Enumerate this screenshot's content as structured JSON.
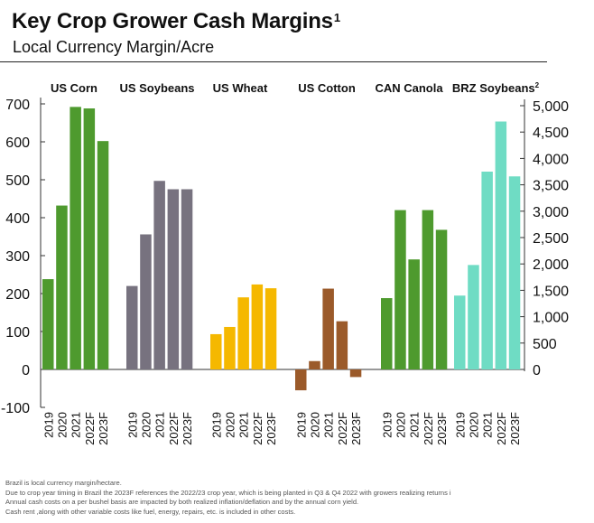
{
  "header": {
    "title": "Key Crop Grower Cash Margins",
    "title_footnote": "1",
    "subtitle": "Local Currency Margin/Acre"
  },
  "chart_data": {
    "type": "bar",
    "title": "Key Crop Grower Cash Margins",
    "subtitle": "Local Currency Margin/Acre",
    "categories": [
      "2019",
      "2020",
      "2021",
      "2022F",
      "2023F"
    ],
    "left_axis": {
      "ylim": [
        -100,
        700
      ],
      "ticks": [
        -100,
        0,
        100,
        200,
        300,
        400,
        500,
        600,
        700
      ]
    },
    "right_axis": {
      "ylim": [
        -500,
        5000
      ],
      "ticks": [
        0,
        500,
        1000,
        1500,
        2000,
        2500,
        3000,
        3500,
        4000,
        4500,
        5000
      ]
    },
    "grid": false,
    "groups": [
      {
        "name": "US Corn",
        "sup": "",
        "axis": "left",
        "color": "#4e9a2e",
        "values": [
          238,
          432,
          692,
          688,
          602
        ]
      },
      {
        "name": "US Soybeans",
        "sup": "",
        "axis": "left",
        "color": "#77727f",
        "values": [
          220,
          356,
          497,
          475,
          475
        ]
      },
      {
        "name": "US Wheat",
        "sup": "",
        "axis": "left",
        "color": "#f5b800",
        "values": [
          93,
          112,
          190,
          224,
          214
        ]
      },
      {
        "name": "US Cotton",
        "sup": "",
        "axis": "left",
        "color": "#9b5a2a",
        "values": [
          -55,
          22,
          213,
          127,
          -20
        ]
      },
      {
        "name": "CAN Canola",
        "sup": "",
        "axis": "left",
        "color": "#4e9a2e",
        "values": [
          188,
          420,
          290,
          420,
          368
        ]
      },
      {
        "name": "BRZ Soybeans",
        "sup": "2",
        "axis": "right",
        "color": "#6fdcc4",
        "values": [
          1400,
          1980,
          3750,
          4700,
          3660
        ]
      }
    ]
  },
  "footnotes": [
    "Brazil is local currency margin/hectare.",
    "Due to crop year timing in Brazil the 2023F references the 2022/23 crop year, which is being planted in Q3 & Q4 2022 with growers realizing returns i",
    "Annual cash costs on a per bushel basis are impacted by both realized inflation/deflation and by the annual corn yield.",
    "Cash rent ,along with other variable costs like fuel, energy, repairs, etc. is included in other costs."
  ]
}
